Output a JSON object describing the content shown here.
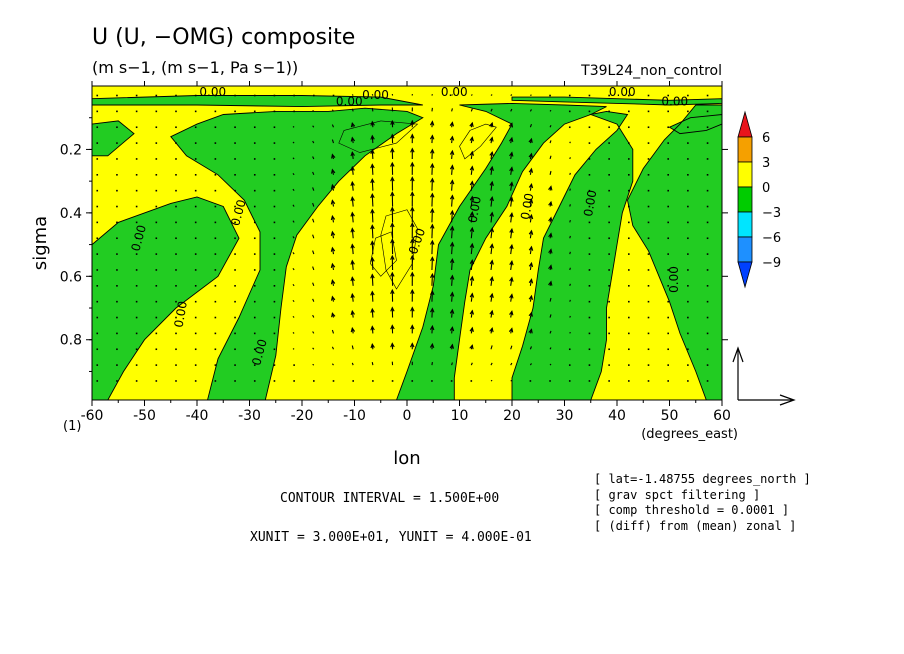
{
  "chart_data": {
    "type": "contour",
    "title": "U (U, −OMG) composite",
    "subtitle": "(m s−1, (m s−1, Pa s−1))",
    "run_label": "T39L24_non_control",
    "xlabel": "lon",
    "xunits": "(degrees_east)",
    "ylabel": "sigma",
    "xlim": [
      -60,
      60
    ],
    "ylim": [
      0.99,
      0.0
    ],
    "y_axis_inverted": true,
    "x_ticks": [
      -60,
      -50,
      -40,
      -30,
      -20,
      -10,
      0,
      10,
      20,
      30,
      40,
      50,
      60
    ],
    "x_tick_labels": [
      "-60",
      "-50",
      "-40",
      "-30",
      "-20",
      "-10",
      "0",
      "10",
      "20",
      "30",
      "40",
      "50",
      "60"
    ],
    "y_ticks": [
      0.2,
      0.4,
      0.6,
      0.8
    ],
    "y_tick_labels": [
      "0.2",
      "0.4",
      "0.6",
      "0.8"
    ],
    "corner_label": "(1)",
    "contour_label": "0.00",
    "contour_interval_text": "CONTOUR INTERVAL = 1.500E+00",
    "unit_text": "XUNIT = 3.000E+01, YUNIT = 4.000E-01",
    "info_lines": [
      "[ lat=-1.48755 degrees_north ]",
      "[ grav spct filtering ]",
      "[ comp threshold = 0.0001 ]",
      "[ (diff) from (mean) zonal ]"
    ],
    "colorbar": {
      "levels": [
        "6",
        "3",
        "0",
        "−3",
        "−6",
        "−9"
      ],
      "colors": [
        "#e8141c",
        "#f5a000",
        "#ffff00",
        "#00cc00",
        "#00e5ff",
        "#1e90ff",
        "#0040ff"
      ]
    },
    "fill_colors": {
      "positive": "#ffff00",
      "negative": "#22cc22"
    }
  }
}
